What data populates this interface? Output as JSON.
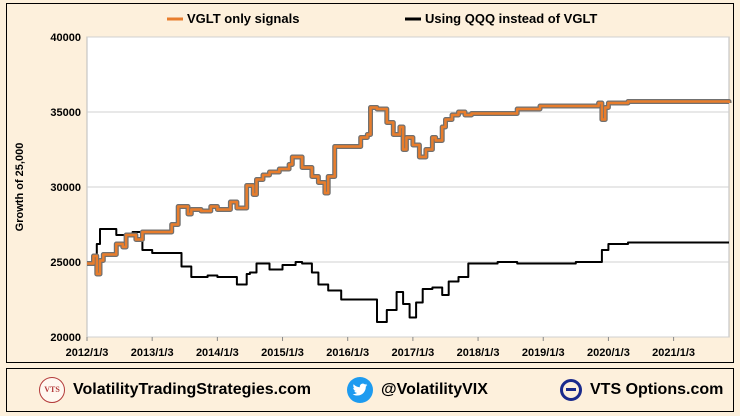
{
  "chart_data": {
    "type": "line",
    "title": "",
    "xlabel": "",
    "ylabel": "Growth of 25,000",
    "ylim": [
      20000,
      40000
    ],
    "yticks": [
      20000,
      25000,
      30000,
      35000,
      40000
    ],
    "ytick_labels": [
      "20000",
      "25000",
      "30000",
      "35000",
      "40000"
    ],
    "xlim": [
      2012.0,
      2021.85
    ],
    "xticks": [
      2012.0,
      2013.0,
      2014.0,
      2015.0,
      2016.0,
      2017.0,
      2018.0,
      2019.0,
      2020.0,
      2021.0
    ],
    "xtick_labels": [
      "2012/1/3",
      "2013/1/3",
      "2014/1/3",
      "2015/1/3",
      "2016/1/3",
      "2017/1/3",
      "2018/1/3",
      "2019/1/3",
      "2020/1/3",
      "2021/1/3"
    ],
    "grid": "horizontal",
    "legend_position": "top",
    "series": [
      {
        "name": "VGLT only signals",
        "color": "#e87d2c",
        "outline_color": "#707070",
        "x": [
          2012.0,
          2012.1,
          2012.15,
          2012.2,
          2012.25,
          2012.3,
          2012.45,
          2012.55,
          2012.6,
          2012.75,
          2012.85,
          2013.0,
          2013.3,
          2013.4,
          2013.55,
          2013.6,
          2013.75,
          2013.9,
          2014.0,
          2014.2,
          2014.3,
          2014.45,
          2014.55,
          2014.6,
          2014.7,
          2014.8,
          2014.95,
          2015.1,
          2015.15,
          2015.3,
          2015.45,
          2015.55,
          2015.65,
          2015.7,
          2015.8,
          2015.9,
          2016.0,
          2016.1,
          2016.2,
          2016.3,
          2016.35,
          2016.45,
          2016.6,
          2016.7,
          2016.8,
          2016.85,
          2016.9,
          2017.0,
          2017.1,
          2017.2,
          2017.3,
          2017.35,
          2017.45,
          2017.5,
          2017.6,
          2017.7,
          2017.8,
          2017.9,
          2018.0,
          2018.1,
          2018.3,
          2018.6,
          2018.95,
          2019.2,
          2019.5,
          2019.8,
          2019.85,
          2019.9,
          2019.95,
          2020.0,
          2020.3,
          2020.6,
          2021.0,
          2021.3,
          2021.7,
          2021.85
        ],
        "y": [
          24900,
          25400,
          24200,
          25100,
          25500,
          25500,
          26200,
          26000,
          26800,
          26500,
          27000,
          27000,
          27500,
          28700,
          28200,
          28500,
          28400,
          28700,
          28500,
          29000,
          28600,
          30100,
          29500,
          30500,
          30800,
          31000,
          31200,
          31500,
          32000,
          31300,
          30700,
          30300,
          29600,
          30700,
          32700,
          32700,
          32700,
          32700,
          33300,
          33500,
          35300,
          35200,
          34300,
          33500,
          34000,
          32500,
          33300,
          32800,
          32000,
          32500,
          33300,
          33100,
          34000,
          34500,
          34800,
          35000,
          34800,
          34900,
          34900,
          34900,
          34900,
          35200,
          35400,
          35400,
          35400,
          35400,
          35600,
          34500,
          35300,
          35600,
          35700,
          35700,
          35700,
          35700,
          35700,
          35600
        ]
      },
      {
        "name": "Using QQQ instead of VGLT",
        "color": "#000000",
        "x": [
          2012.0,
          2012.1,
          2012.15,
          2012.2,
          2012.3,
          2012.45,
          2012.6,
          2012.7,
          2012.85,
          2013.0,
          2013.3,
          2013.45,
          2013.6,
          2013.75,
          2013.85,
          2014.0,
          2014.3,
          2014.45,
          2014.5,
          2014.6,
          2014.8,
          2015.0,
          2015.2,
          2015.3,
          2015.45,
          2015.55,
          2015.7,
          2015.9,
          2016.0,
          2016.1,
          2016.25,
          2016.35,
          2016.45,
          2016.6,
          2016.75,
          2016.85,
          2016.95,
          2017.05,
          2017.15,
          2017.3,
          2017.45,
          2017.55,
          2017.7,
          2017.85,
          2017.95,
          2018.05,
          2018.3,
          2018.6,
          2018.9,
          2019.1,
          2019.5,
          2019.85,
          2019.9,
          2020.0,
          2020.3,
          2020.6,
          2021.0,
          2021.4,
          2021.85
        ],
        "y": [
          24800,
          25500,
          26200,
          27200,
          27200,
          26800,
          26800,
          27000,
          25800,
          25600,
          25600,
          24700,
          24000,
          24000,
          24100,
          24000,
          23500,
          24200,
          24300,
          24900,
          24500,
          24800,
          25000,
          24900,
          24300,
          23500,
          23100,
          22500,
          22500,
          22500,
          22500,
          22500,
          21000,
          21800,
          23000,
          22200,
          21300,
          22300,
          23200,
          23300,
          22800,
          23700,
          24000,
          24900,
          24900,
          24900,
          25000,
          24900,
          24900,
          24900,
          25000,
          25000,
          25800,
          26200,
          26300,
          26300,
          26300,
          26300,
          26300
        ]
      }
    ]
  },
  "footer": {
    "vts_badge": "VTS",
    "website": "VolatilityTradingStrategies.com",
    "twitter_handle": "@VolatilityVIX",
    "options_site": "VTS Options.com"
  },
  "icons": {
    "brand_icon": "vts-seal-icon",
    "twitter_icon": "twitter-bird-icon",
    "options_icon": "theta-icon"
  }
}
